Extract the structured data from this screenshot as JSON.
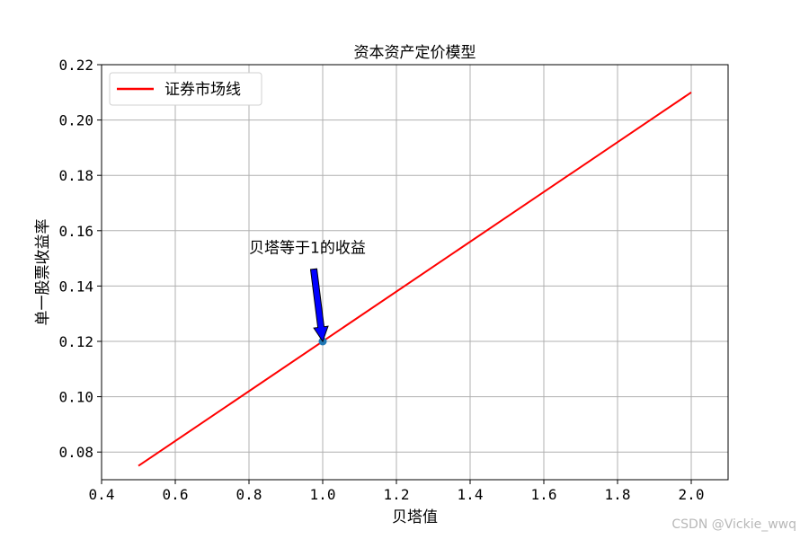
{
  "chart_data": {
    "type": "line",
    "title": "资本资产定价模型",
    "xlabel": "贝塔值",
    "ylabel": "单一股票收益率",
    "xlim": [
      0.4,
      2.1
    ],
    "ylim": [
      0.07,
      0.22
    ],
    "x_ticks": [
      "0.4",
      "0.6",
      "0.8",
      "1.0",
      "1.2",
      "1.4",
      "1.6",
      "1.8",
      "2.0"
    ],
    "y_ticks": [
      "0.08",
      "0.10",
      "0.12",
      "0.14",
      "0.16",
      "0.18",
      "0.20",
      "0.22"
    ],
    "grid": true,
    "legend_position": "upper-left",
    "series": [
      {
        "name": "证券市场线",
        "color": "#ff0000",
        "x": [
          0.5,
          2.0
        ],
        "y": [
          0.075,
          0.21
        ]
      }
    ],
    "points": [
      {
        "x": 1.0,
        "y": 0.12,
        "color": "#1f77b4"
      }
    ],
    "annotation": {
      "text": "贝塔等于1的收益",
      "x": 1.0,
      "y": 0.12,
      "text_x": 0.8,
      "text_y": 0.15,
      "arrow_color": "#0000ff"
    }
  },
  "watermark": "CSDN @Vickie_wwq"
}
